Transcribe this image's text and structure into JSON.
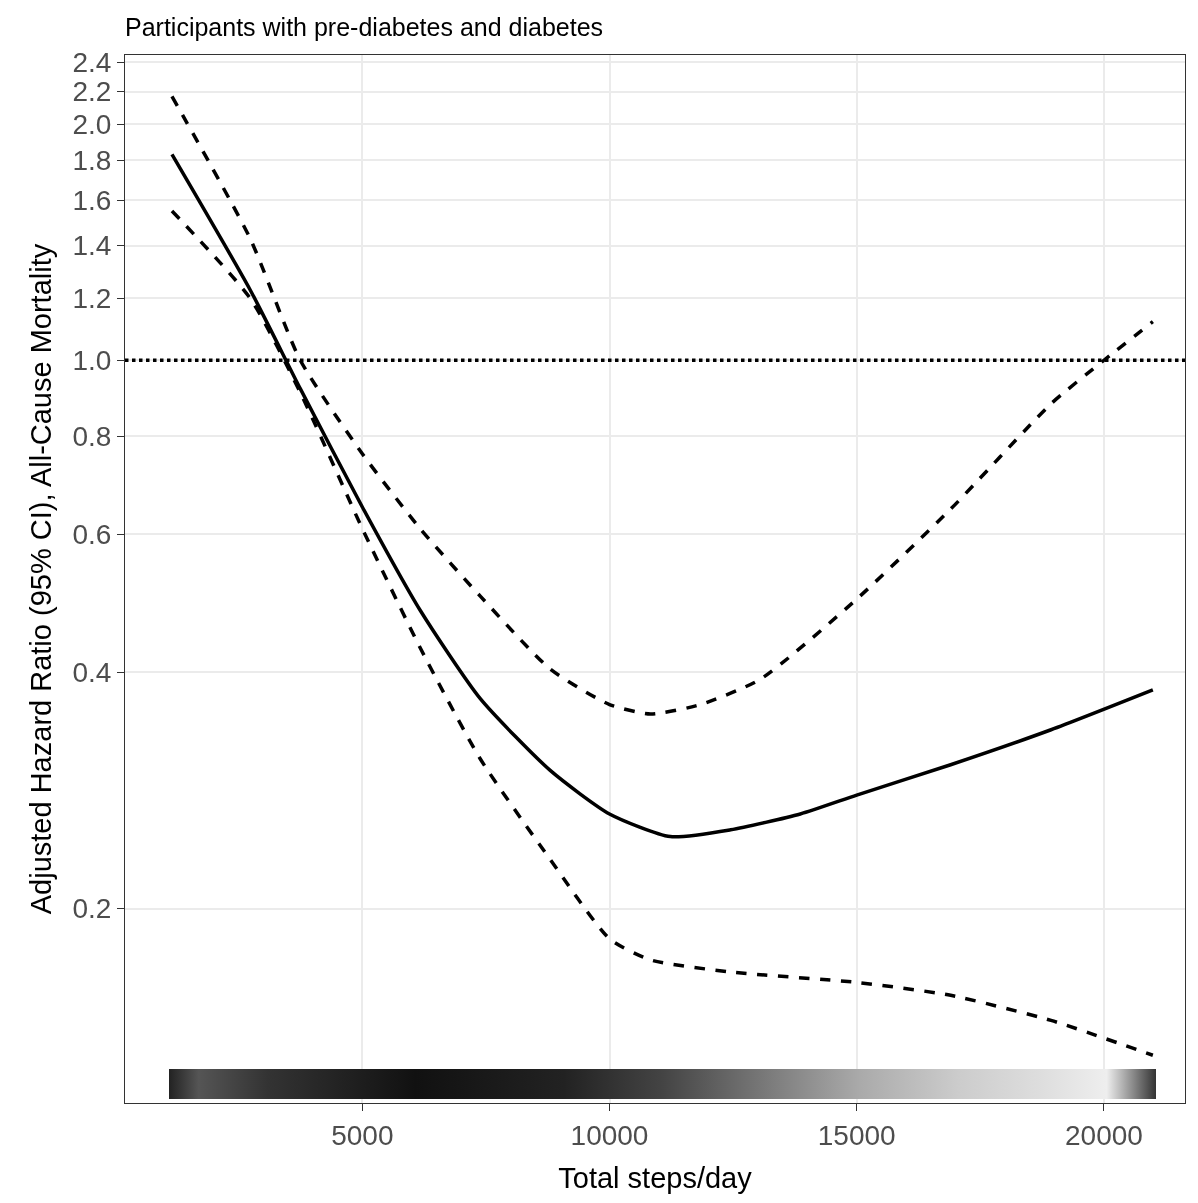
{
  "chart_data": {
    "type": "line",
    "title": "Participants with pre-diabetes and diabetes",
    "xlabel": "Total steps/day",
    "ylabel": "Adjusted Hazard Ratio (95% CI), All-Cause Mortality",
    "log": "y",
    "grid": true,
    "marker": "none",
    "xlim": [
      200,
      21640
    ],
    "xticks": [
      5000,
      10000,
      15000,
      20000
    ],
    "ylim": [
      0.113,
      2.45
    ],
    "yticks": [
      0.2,
      0.4,
      0.6,
      0.8,
      {
        "value": 1,
        "label": "1.0"
      },
      1.2,
      1.4,
      1.6,
      1.8,
      {
        "value": 2,
        "label": "2.0"
      },
      2.2,
      2.4
    ],
    "ref_lines": [
      {
        "axis": "y",
        "value": 1,
        "label": null,
        "color": "#000000",
        "line_style": "dotted"
      }
    ],
    "series": [
      {
        "color": "#000000",
        "line_style": "solid",
        "x": [
          1150,
          2730,
          3745,
          5000,
          6170,
          7390,
          8800,
          10000,
          11230,
          12450,
          13860,
          15000,
          16900,
          18930,
          20990
        ],
        "values": [
          1.83,
          1.23,
          0.92,
          0.65,
          0.48,
          0.37,
          0.3,
          0.264,
          0.247,
          0.252,
          0.264,
          0.279,
          0.305,
          0.338,
          0.38
        ]
      },
      {
        "color": "#000000",
        "line_style": "dashed",
        "x": [
          1150,
          2730,
          3745,
          5000,
          6170,
          7390,
          8800,
          10000,
          10830,
          11840,
          13050,
          15000,
          16900,
          18930,
          20000,
          20990
        ],
        "values": [
          2.17,
          1.43,
          1.0,
          0.76,
          0.61,
          0.5,
          0.404,
          0.364,
          0.354,
          0.364,
          0.392,
          0.496,
          0.646,
          0.88,
          1.0,
          1.12
        ]
      },
      {
        "color": "#000000",
        "line_style": "dashed",
        "x": [
          1150,
          2730,
          3745,
          5000,
          6170,
          7390,
          8800,
          10000,
          10830,
          12450,
          15000,
          16900,
          18930,
          20990
        ],
        "values": [
          1.55,
          1.2,
          0.91,
          0.61,
          0.43,
          0.31,
          0.231,
          0.183,
          0.172,
          0.166,
          0.161,
          0.155,
          0.144,
          0.13
        ]
      }
    ]
  }
}
